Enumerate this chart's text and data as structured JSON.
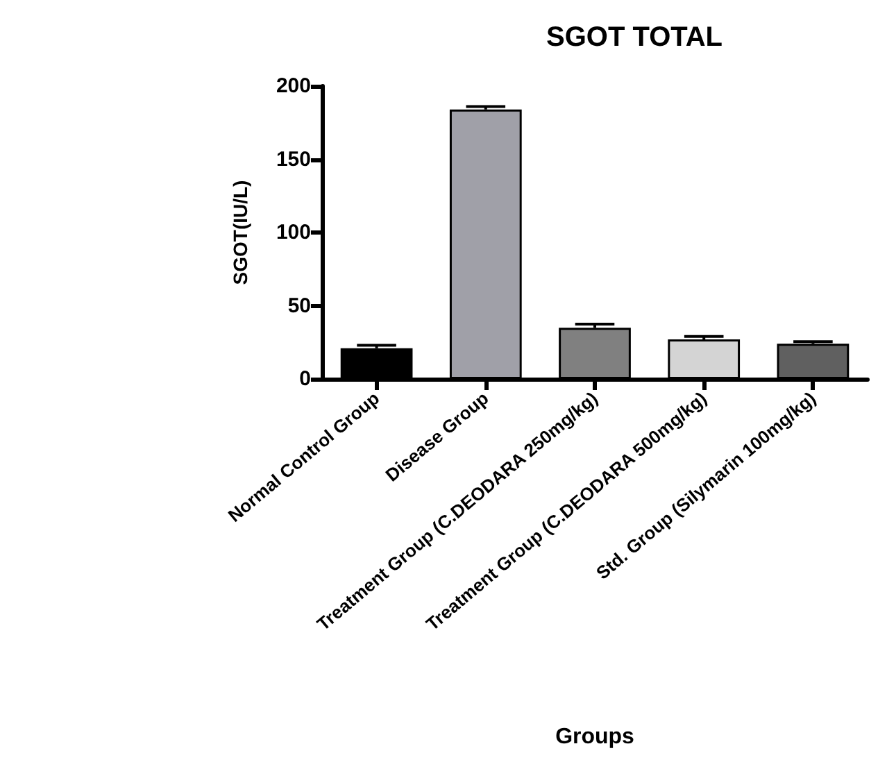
{
  "chart_data": {
    "type": "bar",
    "title": "SGOT TOTAL",
    "xlabel": "Groups",
    "ylabel": "SGOT(IU/L)",
    "categories": [
      "Normal Control Group",
      "Disease Group",
      "Treatment Group (C.DEODARA 250mg/kg)",
      "Treatment Group (C.DEODARA 500mg/kg)",
      "Std. Group (Silymarin 100mg/kg)"
    ],
    "values": [
      21,
      184,
      35,
      27,
      24
    ],
    "errors": [
      2,
      2,
      2.5,
      2,
      1.5
    ],
    "colors": [
      "#000000",
      "#a0a0a8",
      "#808080",
      "#d4d4d4",
      "#606060"
    ],
    "ylim": [
      0,
      200
    ],
    "yticks": [
      0,
      50,
      100,
      150,
      200
    ],
    "grid": false
  }
}
